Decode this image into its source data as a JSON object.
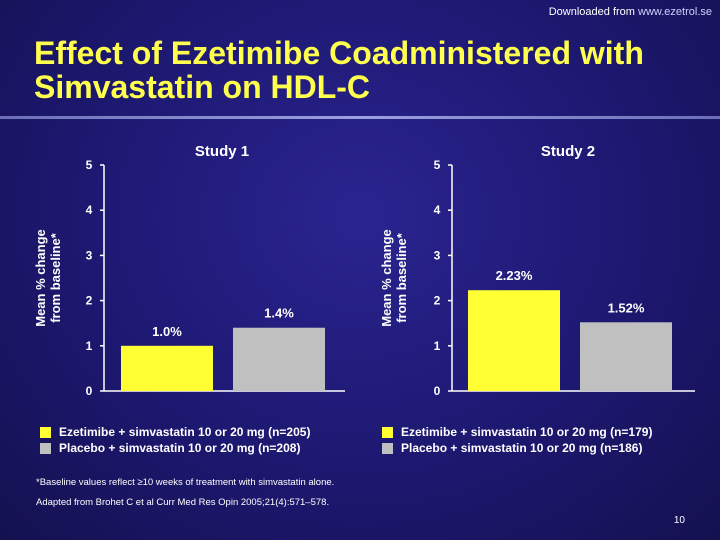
{
  "header": {
    "downloaded_prefix": "Downloaded from",
    "downloaded_url": "www.ezetrol.se",
    "title": "Effect of Ezetimibe Coadministered with Simvastatin on HDL-C"
  },
  "colors": {
    "background": "#1f1a6b",
    "title": "#ffff4d",
    "series_ezetimibe": "#ffff33",
    "series_placebo": "#c0c0c0",
    "axis": "#ffffff"
  },
  "chart_data": [
    {
      "type": "bar",
      "title": "Study 1",
      "ylabel": "Mean % change from baseline*",
      "ylim": [
        0,
        5
      ],
      "yticks": [
        0,
        1,
        2,
        3,
        4,
        5
      ],
      "categories": [
        "Ezetimibe + simvastatin 10 or 20 mg (n=205)",
        "Placebo + simvastatin 10 or 20 mg (n=208)"
      ],
      "values": [
        1.0,
        1.4
      ],
      "value_labels": [
        "1.0%",
        "1.4%"
      ],
      "colors": [
        "#ffff33",
        "#c0c0c0"
      ],
      "legend_position": "bottom"
    },
    {
      "type": "bar",
      "title": "Study 2",
      "ylabel": "Mean % change from baseline*",
      "ylim": [
        0,
        5
      ],
      "yticks": [
        0,
        1,
        2,
        3,
        4,
        5
      ],
      "categories": [
        "Ezetimibe + simvastatin 10 or 20 mg (n=179)",
        "Placebo + simvastatin 10 or 20 mg (n=186)"
      ],
      "values": [
        2.23,
        1.52
      ],
      "value_labels": [
        "2.23%",
        "1.52%"
      ],
      "colors": [
        "#ffff33",
        "#c0c0c0"
      ],
      "legend_position": "bottom"
    }
  ],
  "footnotes": {
    "note": "*Baseline values reflect ≥10 weeks of treatment with simvastatin alone.",
    "source": "Adapted from Brohet C et al Curr Med Res Opin 2005;21(4):571–578."
  },
  "page_number": "10"
}
